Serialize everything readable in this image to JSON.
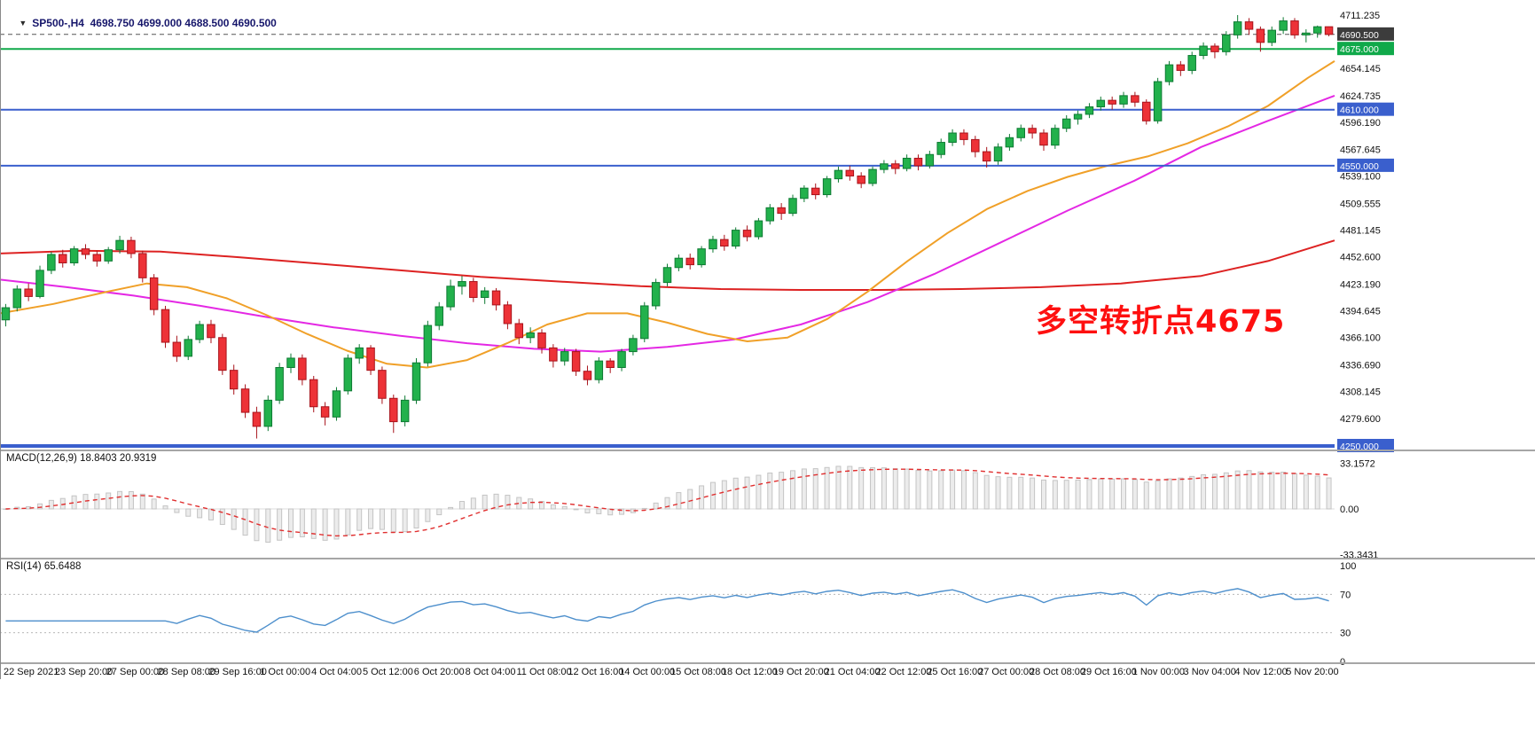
{
  "header": {
    "marker_icon": "▼",
    "symbol_line": "SP500-,H4  4698.750 4699.000 4688.500 4690.500"
  },
  "chart_data": {
    "type": "candlestick",
    "symbol": "SP500-",
    "timeframe": "H4",
    "ohlc_current": {
      "open": 4698.75,
      "high": 4699.0,
      "low": 4688.5,
      "close": 4690.5
    },
    "main_chart": {
      "ylim": [
        4250.0,
        4711.235
      ],
      "annotation": {
        "text": "多空转折点4675",
        "color": "#FF0000"
      },
      "colors": {
        "bull": "#22B14C",
        "bull_border": "#0E7A33",
        "bear": "#ED3237",
        "bear_border": "#A8131B",
        "axis_text": "#111111"
      },
      "y_ticks": [
        {
          "v": 4711.235,
          "label": "4711.235"
        },
        {
          "v": 4654.145,
          "label": "4654.145"
        },
        {
          "v": 4624.735,
          "label": "4624.735"
        },
        {
          "v": 4596.19,
          "label": "4596.190"
        },
        {
          "v": 4567.645,
          "label": "4567.645"
        },
        {
          "v": 4539.1,
          "label": "4539.100"
        },
        {
          "v": 4509.555,
          "label": "4509.555"
        },
        {
          "v": 4481.145,
          "label": "4481.145"
        },
        {
          "v": 4452.6,
          "label": "4452.600"
        },
        {
          "v": 4423.19,
          "label": "4423.190"
        },
        {
          "v": 4394.645,
          "label": "4394.645"
        },
        {
          "v": 4366.1,
          "label": "4366.100"
        },
        {
          "v": 4336.69,
          "label": "4336.690"
        },
        {
          "v": 4308.145,
          "label": "4308.145"
        },
        {
          "v": 4279.6,
          "label": "4279.600"
        }
      ],
      "hlines": [
        {
          "v": 4690.5,
          "label": "4690.500",
          "color": "#555555",
          "style": "dashed",
          "width": 1,
          "badge_bg": "#3C3C3C"
        },
        {
          "v": 4675.0,
          "label": "4675.000",
          "color": "#10A94A",
          "style": "solid",
          "width": 2,
          "badge_bg": "#10A94A"
        },
        {
          "v": 4610.0,
          "label": "4610.000",
          "color": "#3A5FCD",
          "style": "solid",
          "width": 2,
          "badge_bg": "#3A5FCD"
        },
        {
          "v": 4550.0,
          "label": "4550.000",
          "color": "#3A5FCD",
          "style": "solid",
          "width": 2,
          "badge_bg": "#3A5FCD"
        },
        {
          "v": 4250.0,
          "label": "4250.000",
          "color": "#3A5FCD",
          "style": "solid",
          "width": 4,
          "badge_bg": "#3A5FCD"
        }
      ],
      "candles": [
        [
          4385,
          4402,
          4378,
          4398
        ],
        [
          4398,
          4422,
          4394,
          4418
        ],
        [
          4418,
          4424,
          4405,
          4410
        ],
        [
          4410,
          4443,
          4408,
          4438
        ],
        [
          4438,
          4458,
          4434,
          4455
        ],
        [
          4455,
          4460,
          4441,
          4446
        ],
        [
          4446,
          4464,
          4443,
          4461
        ],
        [
          4461,
          4466,
          4450,
          4455
        ],
        [
          4455,
          4459,
          4442,
          4448
        ],
        [
          4448,
          4463,
          4445,
          4460
        ],
        [
          4460,
          4475,
          4456,
          4470
        ],
        [
          4470,
          4474,
          4451,
          4456
        ],
        [
          4456,
          4459,
          4425,
          4430
        ],
        [
          4430,
          4434,
          4390,
          4396
        ],
        [
          4396,
          4400,
          4355,
          4361
        ],
        [
          4361,
          4368,
          4340,
          4346
        ],
        [
          4346,
          4368,
          4342,
          4364
        ],
        [
          4364,
          4384,
          4360,
          4380
        ],
        [
          4380,
          4385,
          4360,
          4366
        ],
        [
          4366,
          4370,
          4326,
          4331
        ],
        [
          4331,
          4337,
          4305,
          4311
        ],
        [
          4311,
          4316,
          4280,
          4286
        ],
        [
          4286,
          4292,
          4258,
          4271
        ],
        [
          4271,
          4304,
          4266,
          4299
        ],
        [
          4299,
          4339,
          4295,
          4334
        ],
        [
          4334,
          4349,
          4328,
          4344
        ],
        [
          4344,
          4348,
          4315,
          4321
        ],
        [
          4321,
          4325,
          4286,
          4292
        ],
        [
          4292,
          4297,
          4272,
          4281
        ],
        [
          4281,
          4313,
          4277,
          4309
        ],
        [
          4309,
          4348,
          4305,
          4344
        ],
        [
          4344,
          4359,
          4338,
          4355
        ],
        [
          4355,
          4358,
          4326,
          4331
        ],
        [
          4331,
          4335,
          4295,
          4301
        ],
        [
          4301,
          4305,
          4264,
          4276
        ],
        [
          4276,
          4304,
          4271,
          4299
        ],
        [
          4299,
          4344,
          4295,
          4339
        ],
        [
          4339,
          4384,
          4335,
          4379
        ],
        [
          4379,
          4404,
          4374,
          4399
        ],
        [
          4399,
          4428,
          4395,
          4421
        ],
        [
          4421,
          4432,
          4412,
          4426
        ],
        [
          4426,
          4430,
          4404,
          4409
        ],
        [
          4409,
          4420,
          4402,
          4416
        ],
        [
          4416,
          4419,
          4395,
          4401
        ],
        [
          4401,
          4405,
          4375,
          4381
        ],
        [
          4381,
          4386,
          4359,
          4366
        ],
        [
          4366,
          4377,
          4360,
          4371
        ],
        [
          4371,
          4375,
          4349,
          4355
        ],
        [
          4355,
          4359,
          4334,
          4341
        ],
        [
          4341,
          4355,
          4336,
          4351
        ],
        [
          4351,
          4354,
          4325,
          4330
        ],
        [
          4330,
          4336,
          4315,
          4321
        ],
        [
          4321,
          4345,
          4317,
          4341
        ],
        [
          4341,
          4344,
          4328,
          4334
        ],
        [
          4334,
          4354,
          4330,
          4351
        ],
        [
          4351,
          4369,
          4347,
          4365
        ],
        [
          4365,
          4404,
          4361,
          4400
        ],
        [
          4400,
          4429,
          4396,
          4425
        ],
        [
          4425,
          4445,
          4421,
          4441
        ],
        [
          4441,
          4455,
          4437,
          4451
        ],
        [
          4451,
          4456,
          4439,
          4444
        ],
        [
          4444,
          4464,
          4441,
          4461
        ],
        [
          4461,
          4475,
          4457,
          4471
        ],
        [
          4471,
          4476,
          4459,
          4464
        ],
        [
          4464,
          4484,
          4461,
          4481
        ],
        [
          4481,
          4486,
          4469,
          4474
        ],
        [
          4474,
          4494,
          4471,
          4491
        ],
        [
          4491,
          4509,
          4487,
          4505
        ],
        [
          4505,
          4510,
          4492,
          4499
        ],
        [
          4499,
          4519,
          4496,
          4515
        ],
        [
          4515,
          4529,
          4511,
          4526
        ],
        [
          4526,
          4531,
          4514,
          4519
        ],
        [
          4519,
          4539,
          4516,
          4536
        ],
        [
          4536,
          4549,
          4532,
          4545
        ],
        [
          4545,
          4550,
          4534,
          4539
        ],
        [
          4539,
          4543,
          4526,
          4531
        ],
        [
          4531,
          4549,
          4528,
          4546
        ],
        [
          4546,
          4556,
          4542,
          4552
        ],
        [
          4552,
          4556,
          4541,
          4547
        ],
        [
          4547,
          4562,
          4544,
          4558
        ],
        [
          4558,
          4562,
          4545,
          4550
        ],
        [
          4550,
          4566,
          4547,
          4562
        ],
        [
          4562,
          4579,
          4558,
          4575
        ],
        [
          4575,
          4589,
          4571,
          4585
        ],
        [
          4585,
          4589,
          4572,
          4578
        ],
        [
          4578,
          4582,
          4559,
          4565
        ],
        [
          4565,
          4570,
          4548,
          4555
        ],
        [
          4555,
          4574,
          4551,
          4570
        ],
        [
          4570,
          4584,
          4566,
          4580
        ],
        [
          4580,
          4594,
          4576,
          4590
        ],
        [
          4590,
          4594,
          4579,
          4585
        ],
        [
          4585,
          4589,
          4566,
          4572
        ],
        [
          4572,
          4594,
          4568,
          4590
        ],
        [
          4590,
          4604,
          4586,
          4600
        ],
        [
          4600,
          4609,
          4594,
          4605
        ],
        [
          4605,
          4617,
          4601,
          4613
        ],
        [
          4613,
          4624,
          4609,
          4620
        ],
        [
          4620,
          4624,
          4610,
          4616
        ],
        [
          4616,
          4629,
          4612,
          4625
        ],
        [
          4625,
          4629,
          4613,
          4618
        ],
        [
          4618,
          4621,
          4594,
          4598
        ],
        [
          4598,
          4644,
          4595,
          4640
        ],
        [
          4640,
          4662,
          4636,
          4658
        ],
        [
          4658,
          4662,
          4646,
          4652
        ],
        [
          4652,
          4672,
          4648,
          4668
        ],
        [
          4668,
          4682,
          4664,
          4678
        ],
        [
          4678,
          4681,
          4665,
          4672
        ],
        [
          4672,
          4694,
          4668,
          4690
        ],
        [
          4690,
          4711.235,
          4686,
          4704
        ],
        [
          4704,
          4708,
          4690,
          4696
        ],
        [
          4696,
          4699,
          4672,
          4682
        ],
        [
          4682,
          4699,
          4678,
          4695
        ],
        [
          4695,
          4709,
          4691,
          4705
        ],
        [
          4705,
          4708,
          4686,
          4690
        ],
        [
          4690,
          4696,
          4682,
          4692
        ],
        [
          4692,
          4700,
          4687,
          4698.75
        ],
        [
          4698.75,
          4699,
          4688.5,
          4690.5
        ]
      ]
    },
    "ma_lines": [
      {
        "name": "ma-line-red",
        "color": "#DD2222",
        "points": [
          [
            0,
            4456
          ],
          [
            0.06,
            4459
          ],
          [
            0.12,
            4458
          ],
          [
            0.18,
            4452
          ],
          [
            0.24,
            4445
          ],
          [
            0.3,
            4438
          ],
          [
            0.36,
            4431
          ],
          [
            0.42,
            4426
          ],
          [
            0.48,
            4421
          ],
          [
            0.54,
            4418
          ],
          [
            0.6,
            4417
          ],
          [
            0.66,
            4417
          ],
          [
            0.72,
            4418
          ],
          [
            0.78,
            4420
          ],
          [
            0.84,
            4424
          ],
          [
            0.9,
            4432
          ],
          [
            0.95,
            4448
          ],
          [
            1,
            4470
          ]
        ]
      },
      {
        "name": "ma-line-magenta",
        "color": "#E428E4",
        "points": [
          [
            0,
            4428
          ],
          [
            0.05,
            4420
          ],
          [
            0.1,
            4411
          ],
          [
            0.15,
            4400
          ],
          [
            0.2,
            4388
          ],
          [
            0.25,
            4377
          ],
          [
            0.3,
            4368
          ],
          [
            0.35,
            4360
          ],
          [
            0.4,
            4354
          ],
          [
            0.45,
            4351
          ],
          [
            0.5,
            4356
          ],
          [
            0.55,
            4364
          ],
          [
            0.6,
            4380
          ],
          [
            0.65,
            4404
          ],
          [
            0.7,
            4434
          ],
          [
            0.75,
            4468
          ],
          [
            0.8,
            4502
          ],
          [
            0.85,
            4534
          ],
          [
            0.9,
            4570
          ],
          [
            0.95,
            4598
          ],
          [
            1,
            4625
          ]
        ]
      },
      {
        "name": "ma-line-orange",
        "color": "#F0A028",
        "points": [
          [
            0,
            4392
          ],
          [
            0.04,
            4402
          ],
          [
            0.08,
            4415
          ],
          [
            0.11,
            4424
          ],
          [
            0.14,
            4420
          ],
          [
            0.17,
            4408
          ],
          [
            0.2,
            4390
          ],
          [
            0.23,
            4370
          ],
          [
            0.26,
            4352
          ],
          [
            0.29,
            4338
          ],
          [
            0.32,
            4334
          ],
          [
            0.35,
            4342
          ],
          [
            0.38,
            4360
          ],
          [
            0.41,
            4380
          ],
          [
            0.44,
            4392
          ],
          [
            0.47,
            4392
          ],
          [
            0.5,
            4382
          ],
          [
            0.53,
            4370
          ],
          [
            0.56,
            4362
          ],
          [
            0.59,
            4366
          ],
          [
            0.62,
            4386
          ],
          [
            0.65,
            4415
          ],
          [
            0.68,
            4448
          ],
          [
            0.71,
            4478
          ],
          [
            0.74,
            4504
          ],
          [
            0.77,
            4523
          ],
          [
            0.8,
            4538
          ],
          [
            0.83,
            4550
          ],
          [
            0.86,
            4560
          ],
          [
            0.89,
            4574
          ],
          [
            0.92,
            4592
          ],
          [
            0.95,
            4614
          ],
          [
            0.98,
            4644
          ],
          [
            1,
            4662
          ]
        ]
      }
    ],
    "macd": {
      "label": "MACD(12,26,9) 18.8403 20.9319",
      "params": [
        12,
        26,
        9
      ],
      "values_shown": [
        18.8403,
        20.9319
      ],
      "hist_fill": "#ECECEC",
      "hist_border": "#C4C4C4",
      "signal_color": "#E03030",
      "ticks": [
        {
          "v": 33.1572,
          "label": "33.1572"
        },
        {
          "v": 0,
          "label": "0.00"
        },
        {
          "v": -33.3431,
          "label": "-33.3431"
        }
      ]
    },
    "rsi": {
      "label": "RSI(14) 65.6488",
      "period": 14,
      "value_shown": 65.6488,
      "line_color": "#4D8FCC",
      "levels": [
        70,
        30
      ],
      "ticks": [
        {
          "v": 100,
          "label": "100"
        },
        {
          "v": 70,
          "label": "70"
        },
        {
          "v": 30,
          "label": "30"
        },
        {
          "v": 0,
          "label": "0"
        }
      ]
    },
    "time_axis": {
      "labels": [
        "22 Sep 2021",
        "23 Sep 20:00",
        "27 Sep 00:00",
        "28 Sep 08:00",
        "29 Sep 16:00",
        "1 Oct 00:00",
        "4 Oct 04:00",
        "5 Oct 12:00",
        "6 Oct 20:00",
        "8 Oct 04:00",
        "11 Oct 08:00",
        "12 Oct 16:00",
        "14 Oct 00:00",
        "15 Oct 08:00",
        "18 Oct 12:00",
        "19 Oct 20:00",
        "21 Oct 04:00",
        "22 Oct 12:00",
        "25 Oct 16:00",
        "27 Oct 00:00",
        "28 Oct 08:00",
        "29 Oct 16:00",
        "1 Nov 00:00",
        "3 Nov 04:00",
        "4 Nov 12:00",
        "5 Nov 20:00"
      ]
    }
  }
}
